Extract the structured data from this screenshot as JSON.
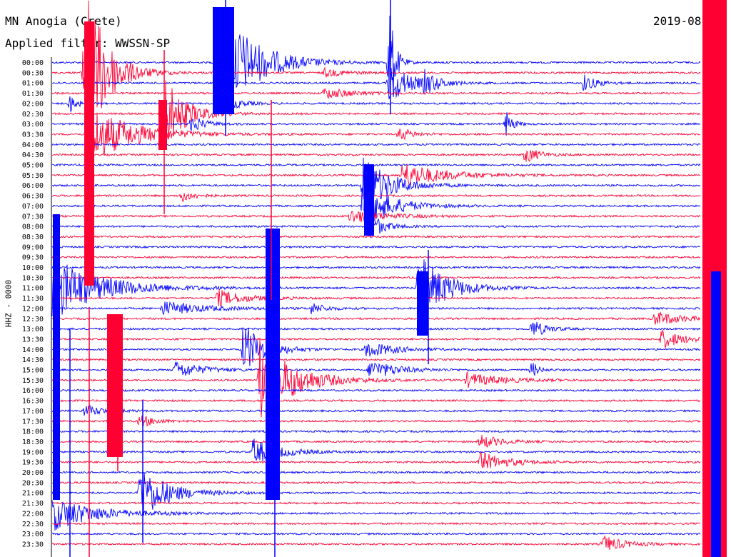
{
  "header": {
    "station": "MN Anogia (Crete)",
    "filter": "Applied filter: WWSSN-SP",
    "date": "2019-08"
  },
  "chart_data": {
    "type": "line",
    "title": "MN Anogia (Crete)",
    "ylabel": "HHZ - 0000",
    "colors": {
      "a": "#0000ff",
      "b": "#ff0033"
    },
    "rows": [
      "00:00",
      "00:30",
      "01:00",
      "01:30",
      "02:00",
      "02:30",
      "03:00",
      "03:30",
      "04:00",
      "04:30",
      "05:00",
      "05:30",
      "06:00",
      "06:30",
      "07:00",
      "07:30",
      "08:00",
      "08:30",
      "09:00",
      "09:30",
      "10:00",
      "10:30",
      "11:00",
      "11:30",
      "12:00",
      "12:30",
      "13:00",
      "13:30",
      "14:00",
      "14:30",
      "15:00",
      "15:30",
      "16:00",
      "16:30",
      "17:00",
      "17:30",
      "18:00",
      "18:30",
      "19:00",
      "19:30",
      "20:00",
      "20:30",
      "21:00",
      "21:30",
      "22:00",
      "22:30",
      "23:00",
      "23:30"
    ],
    "events": [
      {
        "row": 0,
        "x": 0.265,
        "amp": 75,
        "dur": 0.05
      },
      {
        "row": 0,
        "x": 0.52,
        "amp": 90,
        "dur": 0.008
      },
      {
        "row": 1,
        "x": 0.05,
        "amp": 140,
        "dur": 0.03
      },
      {
        "row": 1,
        "x": 0.42,
        "amp": 6,
        "dur": 0.03
      },
      {
        "row": 2,
        "x": 0.52,
        "amp": 30,
        "dur": 0.03
      },
      {
        "row": 2,
        "x": 0.575,
        "amp": 14,
        "dur": 0.02
      },
      {
        "row": 2,
        "x": 0.82,
        "amp": 12,
        "dur": 0.02
      },
      {
        "row": 3,
        "x": 0.42,
        "amp": 8,
        "dur": 0.04
      },
      {
        "row": 4,
        "x": 0.028,
        "amp": 14,
        "dur": 0.01
      },
      {
        "row": 4,
        "x": 0.265,
        "amp": 14,
        "dur": 0.02
      },
      {
        "row": 5,
        "x": 0.17,
        "amp": 60,
        "dur": 0.03
      },
      {
        "row": 6,
        "x": 0.215,
        "amp": 12,
        "dur": 0.02
      },
      {
        "row": 6,
        "x": 0.7,
        "amp": 18,
        "dur": 0.01
      },
      {
        "row": 7,
        "x": 0.055,
        "amp": 45,
        "dur": 0.06
      },
      {
        "row": 7,
        "x": 0.535,
        "amp": 10,
        "dur": 0.02
      },
      {
        "row": 9,
        "x": 0.73,
        "amp": 12,
        "dur": 0.02
      },
      {
        "row": 11,
        "x": 0.54,
        "amp": 18,
        "dur": 0.06
      },
      {
        "row": 12,
        "x": 0.48,
        "amp": 40,
        "dur": 0.04
      },
      {
        "row": 13,
        "x": 0.2,
        "amp": 8,
        "dur": 0.02
      },
      {
        "row": 14,
        "x": 0.48,
        "amp": 35,
        "dur": 0.04
      },
      {
        "row": 15,
        "x": 0.46,
        "amp": 10,
        "dur": 0.05
      },
      {
        "row": 16,
        "x": 0.49,
        "amp": 20,
        "dur": 0.02
      },
      {
        "row": 22,
        "x": 0.0,
        "amp": 45,
        "dur": 0.07
      },
      {
        "row": 22,
        "x": 0.565,
        "amp": 50,
        "dur": 0.04
      },
      {
        "row": 23,
        "x": 0.255,
        "amp": 12,
        "dur": 0.04
      },
      {
        "row": 24,
        "x": 0.17,
        "amp": 10,
        "dur": 0.06
      },
      {
        "row": 24,
        "x": 0.4,
        "amp": 8,
        "dur": 0.02
      },
      {
        "row": 25,
        "x": 0.93,
        "amp": 10,
        "dur": 0.04
      },
      {
        "row": 26,
        "x": 0.74,
        "amp": 14,
        "dur": 0.02
      },
      {
        "row": 27,
        "x": 0.94,
        "amp": 14,
        "dur": 0.03
      },
      {
        "row": 28,
        "x": 0.295,
        "amp": 40,
        "dur": 0.03
      },
      {
        "row": 28,
        "x": 0.485,
        "amp": 12,
        "dur": 0.04
      },
      {
        "row": 30,
        "x": 0.19,
        "amp": 12,
        "dur": 0.04
      },
      {
        "row": 30,
        "x": 0.49,
        "amp": 14,
        "dur": 0.04
      },
      {
        "row": 30,
        "x": 0.74,
        "amp": 12,
        "dur": 0.01
      },
      {
        "row": 31,
        "x": 0.32,
        "amp": 60,
        "dur": 0.05
      },
      {
        "row": 31,
        "x": 0.64,
        "amp": 10,
        "dur": 0.05
      },
      {
        "row": 34,
        "x": 0.05,
        "amp": 8,
        "dur": 0.03
      },
      {
        "row": 35,
        "x": 0.135,
        "amp": 10,
        "dur": 0.02
      },
      {
        "row": 37,
        "x": 0.66,
        "amp": 10,
        "dur": 0.03
      },
      {
        "row": 38,
        "x": 0.31,
        "amp": 18,
        "dur": 0.04
      },
      {
        "row": 39,
        "x": 0.66,
        "amp": 14,
        "dur": 0.04
      },
      {
        "row": 42,
        "x": 0.135,
        "amp": 40,
        "dur": 0.04
      },
      {
        "row": 44,
        "x": 0.0,
        "amp": 25,
        "dur": 0.06
      },
      {
        "row": 47,
        "x": 0.85,
        "amp": 12,
        "dur": 0.03
      }
    ]
  }
}
